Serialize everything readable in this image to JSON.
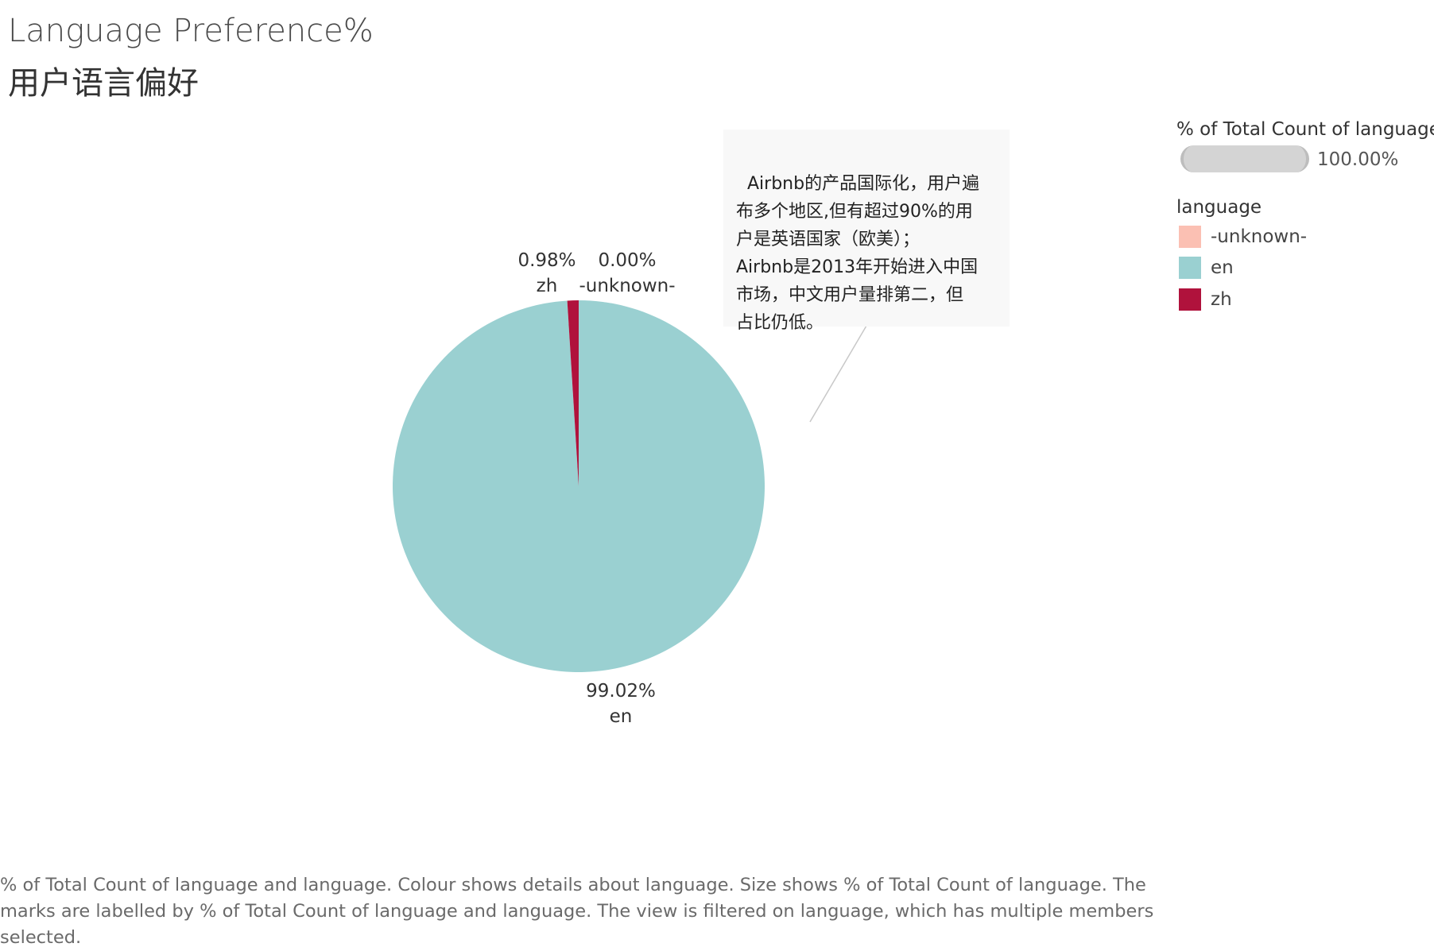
{
  "title": {
    "line1": "Language Preference%",
    "line2": "用户语言偏好"
  },
  "annotation": {
    "text": "Airbnb的产品国际化，用户遍\n布多个地区,但有超过90%的用\n户是英语国家（欧美）；\nAirbnb是2013年开始进入中国\n市场，中文用户量排第二，但\n占比仍低。"
  },
  "legend": {
    "size_title": "% of Total Count of language",
    "size_value": "100.00%",
    "color_title": "language",
    "items": [
      {
        "label": "-unknown-",
        "color": "#fbc0b3"
      },
      {
        "label": "en",
        "color": "#9ad0d1"
      },
      {
        "label": "zh",
        "color": "#b0123c"
      }
    ]
  },
  "caption": "% of Total Count of language and language.  Colour shows details about language.  Size shows % of Total Count of language.  The marks are labelled by % of Total Count of language and language. The view is filtered on language, which has multiple members selected.",
  "chart_data": {
    "type": "pie",
    "title": "Language Preference%",
    "subtitle": "用户语言偏好",
    "categories": [
      "-unknown-",
      "en",
      "zh"
    ],
    "values": [
      0.0,
      99.02,
      0.98
    ],
    "value_labels": [
      "0.00%",
      "99.02%",
      "0.98%"
    ],
    "colors": [
      "#fbc0b3",
      "#9ad0d1",
      "#b0123c"
    ],
    "legend_position": "right"
  }
}
